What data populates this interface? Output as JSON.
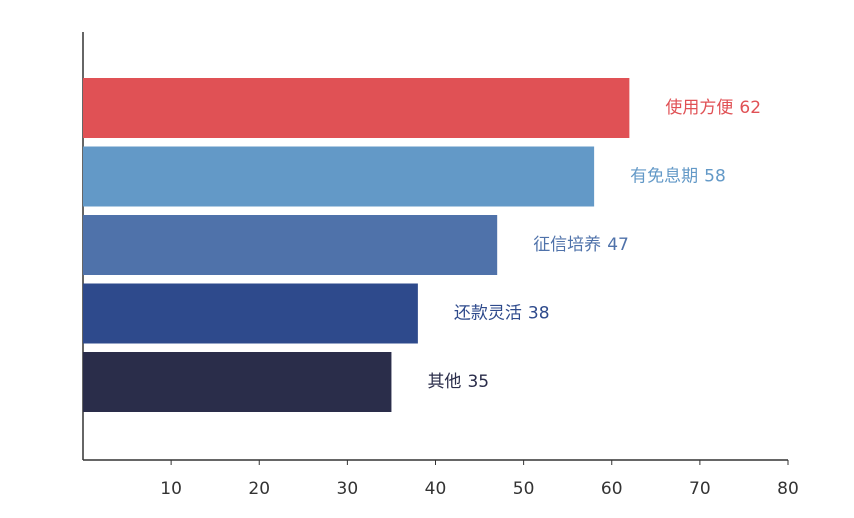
{
  "chart_data": {
    "type": "bar",
    "orientation": "horizontal",
    "categories": [
      "使用方便",
      "有免息期",
      "征信培养",
      "还款灵活",
      "其他"
    ],
    "values": [
      62,
      58,
      47,
      38,
      35
    ],
    "colors": [
      "#e05155",
      "#6399c7",
      "#4f72aa",
      "#2e4a8c",
      "#2a2d4a"
    ],
    "xlim": [
      0,
      80
    ],
    "xticks": [
      10,
      20,
      30,
      40,
      50,
      60,
      70,
      80
    ]
  }
}
